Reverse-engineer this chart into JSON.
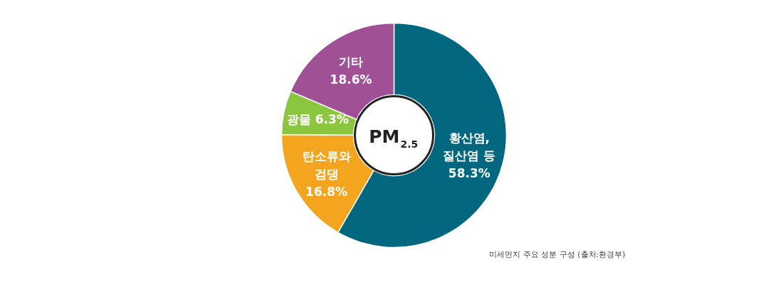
{
  "chart_data": {
    "type": "donut",
    "title": "PM$_{2.5}$",
    "categories": [
      "황산염, 질산염 등",
      "탄소류와 검댕",
      "광물",
      "기타"
    ],
    "values": [
      58.3,
      16.8,
      6.3,
      18.6
    ],
    "colors": [
      "#00677f",
      "#f4a51f",
      "#8cc63f",
      "#a05195"
    ],
    "value_labels": [
      "58.3%",
      "16.8%",
      "6.3%",
      "18.6%"
    ],
    "annotations": [
      "미세먼지 주요 성분 구성 (출처:환경부)"
    ]
  }
}
